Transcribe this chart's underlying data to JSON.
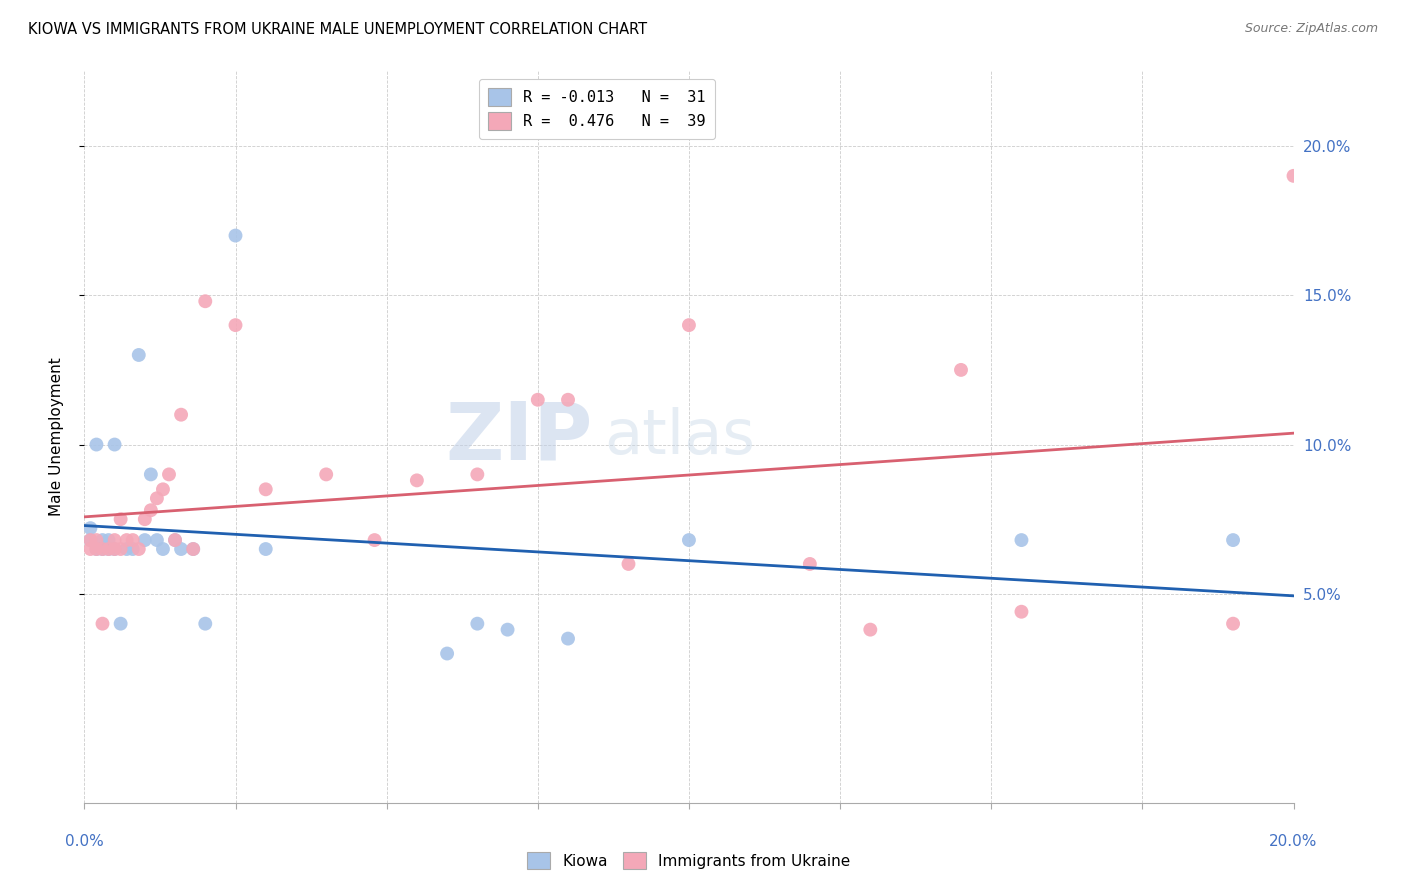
{
  "title": "KIOWA VS IMMIGRANTS FROM UKRAINE MALE UNEMPLOYMENT CORRELATION CHART",
  "source": "Source: ZipAtlas.com",
  "ylabel": "Male Unemployment",
  "xlim": [
    0.0,
    0.2
  ],
  "ylim": [
    -0.02,
    0.225
  ],
  "yticks": [
    0.05,
    0.1,
    0.15,
    0.2
  ],
  "ytick_labels": [
    "5.0%",
    "10.0%",
    "15.0%",
    "20.0%"
  ],
  "legend_r1": "R = -0.013   N =  31",
  "legend_r2": "R =  0.476   N =  39",
  "kiowa_color": "#a8c4e8",
  "ukraine_color": "#f4a8b8",
  "kiowa_line_color": "#2060b0",
  "ukraine_line_color": "#d86070",
  "background_color": "#ffffff",
  "watermark_zip": "ZIP",
  "watermark_atlas": "atlas",
  "kiowa_x": [
    0.001,
    0.001,
    0.002,
    0.002,
    0.003,
    0.003,
    0.004,
    0.004,
    0.005,
    0.005,
    0.006,
    0.007,
    0.008,
    0.009,
    0.01,
    0.011,
    0.012,
    0.013,
    0.015,
    0.016,
    0.018,
    0.02,
    0.025,
    0.03,
    0.06,
    0.065,
    0.07,
    0.08,
    0.1,
    0.155,
    0.19
  ],
  "kiowa_y": [
    0.068,
    0.072,
    0.065,
    0.1,
    0.065,
    0.068,
    0.065,
    0.068,
    0.065,
    0.1,
    0.04,
    0.065,
    0.065,
    0.13,
    0.068,
    0.09,
    0.068,
    0.065,
    0.068,
    0.065,
    0.065,
    0.04,
    0.17,
    0.065,
    0.03,
    0.04,
    0.038,
    0.035,
    0.068,
    0.068,
    0.068
  ],
  "ukraine_x": [
    0.001,
    0.001,
    0.002,
    0.002,
    0.003,
    0.003,
    0.004,
    0.005,
    0.005,
    0.006,
    0.006,
    0.007,
    0.008,
    0.009,
    0.01,
    0.011,
    0.012,
    0.013,
    0.014,
    0.015,
    0.016,
    0.018,
    0.02,
    0.025,
    0.03,
    0.04,
    0.048,
    0.055,
    0.065,
    0.075,
    0.08,
    0.09,
    0.1,
    0.12,
    0.13,
    0.145,
    0.155,
    0.19,
    0.2
  ],
  "ukraine_y": [
    0.065,
    0.068,
    0.065,
    0.068,
    0.065,
    0.04,
    0.065,
    0.065,
    0.068,
    0.065,
    0.075,
    0.068,
    0.068,
    0.065,
    0.075,
    0.078,
    0.082,
    0.085,
    0.09,
    0.068,
    0.11,
    0.065,
    0.148,
    0.14,
    0.085,
    0.09,
    0.068,
    0.088,
    0.09,
    0.115,
    0.115,
    0.06,
    0.14,
    0.06,
    0.038,
    0.125,
    0.044,
    0.04,
    0.19
  ]
}
